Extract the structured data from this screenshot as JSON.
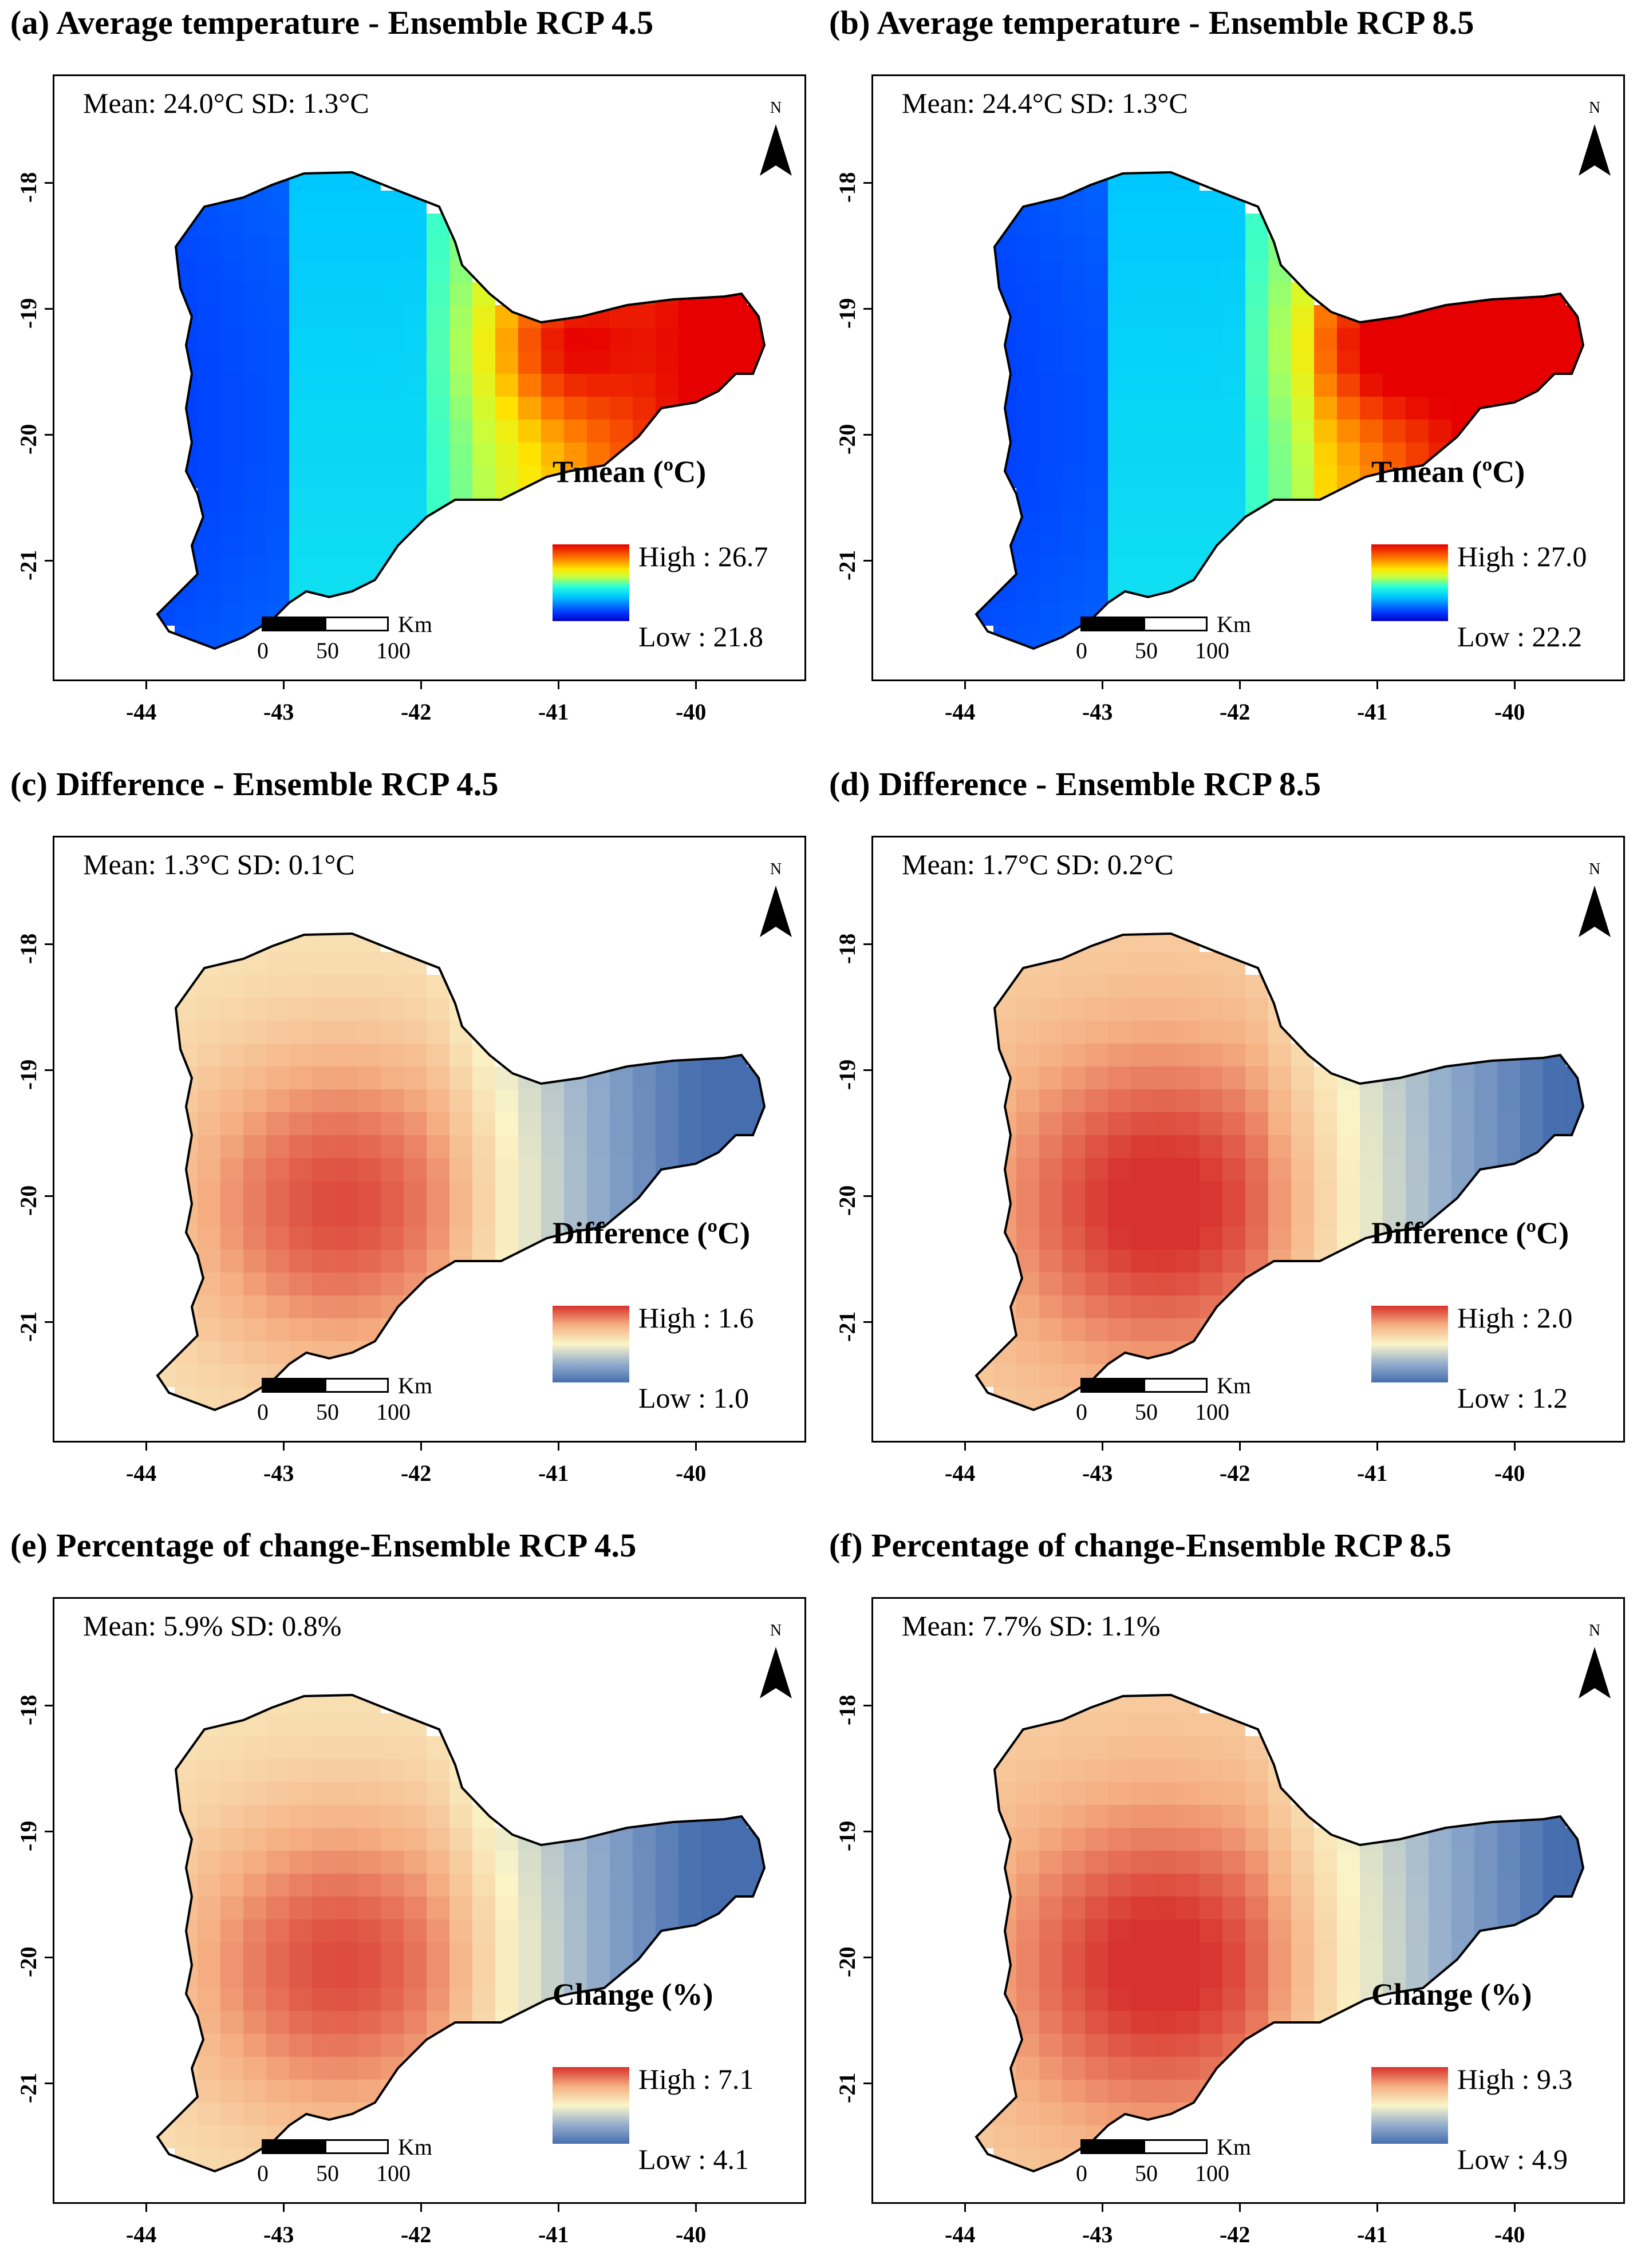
{
  "panels": [
    {
      "title": "(a) Average temperature - Ensemble RCP 4.5",
      "stats": "Mean: 24.0°C  SD: 1.3°C",
      "legend_title": "Tmean (ºC)",
      "legend_high": "High : 26.7",
      "legend_low": "Low : 21.8",
      "palette": "jet",
      "scenario": "rcp45"
    },
    {
      "title": "(b) Average temperature - Ensemble RCP 8.5",
      "stats": "Mean: 24.4°C  SD: 1.3°C",
      "legend_title": "Tmean (ºC)",
      "legend_high": "High : 27.0",
      "legend_low": "Low : 22.2",
      "palette": "jet",
      "scenario": "rcp85"
    },
    {
      "title": "(c) Difference - Ensemble RCP 4.5",
      "stats": "Mean: 1.3°C  SD: 0.1°C",
      "legend_title": "Difference (ºC)",
      "legend_high": "High : 1.6",
      "legend_low": "Low : 1.0",
      "palette": "diverging",
      "scenario": "rcp45"
    },
    {
      "title": "(d) Difference - Ensemble RCP 8.5",
      "stats": "Mean: 1.7°C  SD: 0.2°C",
      "legend_title": "Difference (ºC)",
      "legend_high": "High : 2.0",
      "legend_low": "Low : 1.2",
      "palette": "diverging",
      "scenario": "rcp85"
    },
    {
      "title": "(e) Percentage of change-Ensemble RCP 4.5",
      "stats": "Mean: 5.9%  SD: 0.8%",
      "legend_title": "Change (%)",
      "legend_high": "High : 7.1",
      "legend_low": "Low : 4.1",
      "palette": "diverging",
      "scenario": "rcp45"
    },
    {
      "title": "(f) Percentage of change-Ensemble RCP 8.5",
      "stats": "Mean: 7.7%  SD: 1.1%",
      "legend_title": "Change (%)",
      "legend_high": "High : 9.3",
      "legend_low": "Low : 4.9",
      "palette": "diverging",
      "scenario": "rcp85"
    }
  ],
  "map_common": {
    "north_label": "N",
    "scale_unit": "Km",
    "scale_ticks": [
      "0",
      "50",
      "100"
    ],
    "y_ticks": [
      "-18",
      "-19",
      "-20",
      "-21"
    ],
    "x_ticks": [
      "-44",
      "-43",
      "-42",
      "-41",
      "-40"
    ]
  }
}
